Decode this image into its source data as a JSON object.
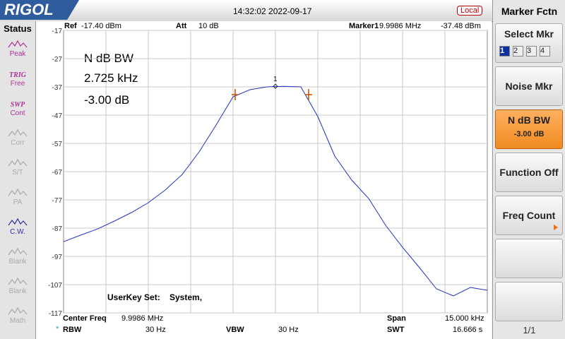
{
  "header": {
    "logo": "RIGOL",
    "datetime": "14:32:02 2022-09-17",
    "mode": "Local"
  },
  "status": {
    "title": "Status",
    "items": [
      {
        "label": "Peak",
        "color": "#b0309a"
      },
      {
        "top": "TRIG",
        "label": "Free",
        "color": "#b0309a"
      },
      {
        "top": "SWP",
        "label": "Cont",
        "color": "#b0309a"
      },
      {
        "label": "Corr",
        "color": "#aaaaaa"
      },
      {
        "label": "S/T",
        "color": "#aaaaaa"
      },
      {
        "label": "PA",
        "color": "#aaaaaa"
      },
      {
        "label": "C.W.",
        "color": "#3030a0"
      },
      {
        "label": "Blank",
        "color": "#aaaaaa"
      },
      {
        "label": "Blank",
        "color": "#aaaaaa"
      },
      {
        "label": "Math",
        "color": "#aaaaaa"
      }
    ]
  },
  "info": {
    "ref_label": "Ref",
    "ref": "-17.40 dBm",
    "att_label": "Att",
    "att": "10 dB",
    "marker_label": "Marker1",
    "marker_freq": "9.9986 MHz",
    "marker_amp": "-37.48 dBm"
  },
  "footer": {
    "center_label": "Center Freq",
    "center": "9.9986 MHz",
    "span_label": "Span",
    "span": "15.000 kHz",
    "rbw_label": "RBW",
    "rbw": "30 Hz",
    "vbw_label": "VBW",
    "vbw": "30 Hz",
    "swt_label": "SWT",
    "swt": "16.666 s"
  },
  "annotation": {
    "title": "N dB BW",
    "bw": "2.725 kHz",
    "level": "-3.00 dB"
  },
  "userkey": {
    "label": "UserKey Set:",
    "value": "System,"
  },
  "menu": {
    "title": "Marker Fctn",
    "buttons": [
      {
        "label": "Select Mkr",
        "options": [
          "1",
          "2",
          "3",
          "4"
        ]
      },
      {
        "label": "Noise Mkr"
      },
      {
        "label": "N dB BW",
        "value": "-3.00 dB"
      },
      {
        "label": "Function Off"
      },
      {
        "label": "Freq Count"
      }
    ],
    "page": "1/1"
  },
  "chart_data": {
    "type": "line",
    "marker_label": "1",
    "color": "#2030c0",
    "ylim": [
      -117,
      -17
    ],
    "yticks": [
      -17,
      -27,
      -37,
      -47,
      -57,
      -67,
      -77,
      -87,
      -97,
      -107,
      -117
    ],
    "grid": true,
    "values": [
      -91.8,
      -89.5,
      -87.3,
      -84.5,
      -81.5,
      -78,
      -73.5,
      -68,
      -60,
      -50.5,
      -40.5,
      -38,
      -37,
      -36.8,
      -37,
      -47.5,
      -61.5,
      -70,
      -76.5,
      -86,
      -93.8,
      -101,
      -108.5,
      -111,
      -108,
      -109
    ]
  }
}
